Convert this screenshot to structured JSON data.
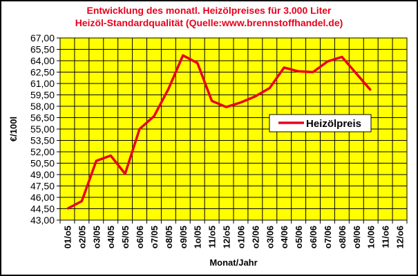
{
  "chart_data": {
    "type": "line",
    "title": "Entwicklung des monatl. Heizölpreises für 3.000 Liter",
    "subtitle": "Heizöl-Standardqualität (Quelle:www.brennstoffhandel.de)",
    "xlabel": "Monat/Jahr",
    "ylabel": "€/100l",
    "ylim": [
      43.0,
      67.0
    ],
    "y_ticks": [
      "67,00",
      "65,50",
      "64,00",
      "62,50",
      "61,00",
      "59,50",
      "58,00",
      "56,50",
      "55,00",
      "53,50",
      "52,00",
      "50,50",
      "49,00",
      "47,50",
      "46,00",
      "44,50",
      "43,00"
    ],
    "grid": true,
    "legend_position": "right-center inside plot",
    "categories": [
      "01/o5",
      "o2/05",
      "o3/05",
      "o4/05",
      "o5/05",
      "o6/06",
      "o7/05",
      "o8/05",
      "o9/05",
      "1o/05",
      "11/o5",
      "12/o5",
      "o1/06",
      "o2/06",
      "o3/06",
      "o4/06",
      "o5/06",
      "o6/06",
      "o7/06",
      "o8/06",
      "o9/06",
      "1o/06",
      "11/o6",
      "12/o6"
    ],
    "series": [
      {
        "name": "Heizölpreis",
        "color": "#e8001c",
        "values": [
          44.5,
          45.5,
          50.8,
          51.5,
          49.1,
          55.0,
          56.7,
          60.3,
          64.7,
          63.7,
          58.7,
          57.9,
          58.5,
          59.3,
          60.4,
          63.1,
          62.6,
          62.5,
          63.9,
          64.5,
          62.3,
          60.1,
          null,
          null
        ]
      }
    ],
    "colors": {
      "plot_background": "#ffff00",
      "line": "#e8001c",
      "title": "#e8001c",
      "grid": "#000000"
    }
  }
}
